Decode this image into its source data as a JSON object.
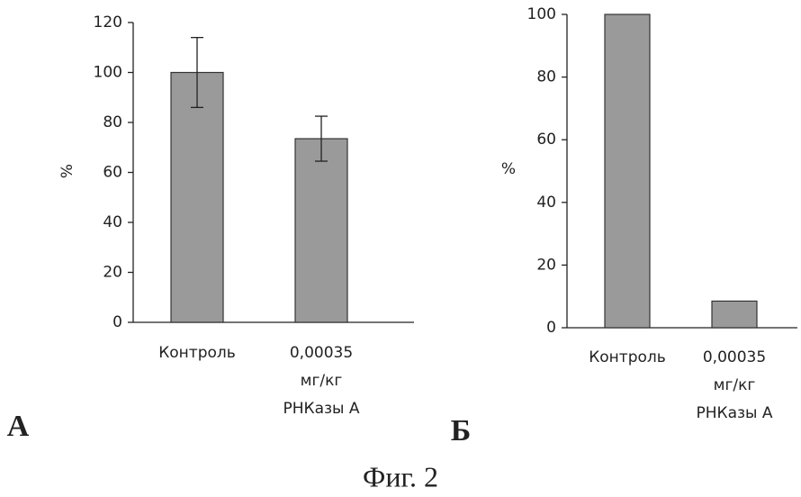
{
  "chart_data": [
    {
      "type": "bar",
      "panel_label": "А",
      "ylabel": "%",
      "categories": [
        [
          "Контроль"
        ],
        [
          "0,00035",
          "мг/кг",
          "РНКазы А"
        ]
      ],
      "values": [
        100,
        73.5
      ],
      "errors": [
        14,
        9
      ],
      "color": "#9a9a9a",
      "ylim": [
        0,
        120
      ],
      "yticks": [
        0,
        20,
        40,
        60,
        80,
        100,
        120
      ]
    },
    {
      "type": "bar",
      "panel_label": "Б",
      "ylabel": "%",
      "categories": [
        [
          "Контроль"
        ],
        [
          "0,00035",
          "мг/кг",
          "РНКазы А"
        ]
      ],
      "values": [
        100,
        8.5
      ],
      "color": "#9a9a9a",
      "ylim": [
        0,
        100
      ],
      "yticks": [
        0,
        20,
        40,
        60,
        80,
        100
      ]
    }
  ],
  "caption": "Фиг. 2"
}
